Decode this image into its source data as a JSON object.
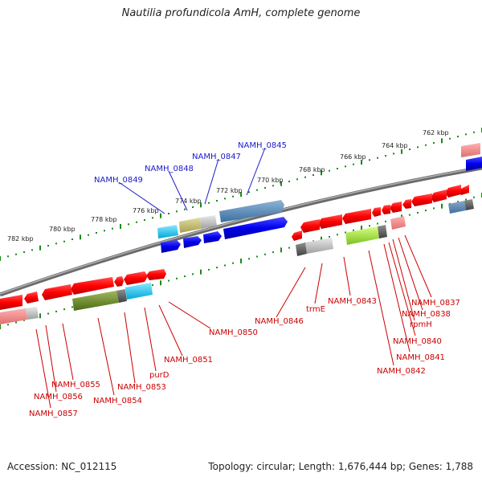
{
  "title": "Nautilia profundicola AmH, complete genome",
  "footer": {
    "accession": "Accession: NC_012115",
    "summary": "Topology: circular; Length: 1,676,444 bp; Genes: 1,788"
  },
  "colors": {
    "backbone": "#808080",
    "tick": "#1a8a1a",
    "forward_label": "#1a1acc",
    "reverse_label": "#cc0000",
    "gene_red": "#ff0000",
    "gene_blue": "#0000ee"
  },
  "tick_labels": [
    "762 kbp",
    "764 kbp",
    "766 kbp",
    "768 kbp",
    "770 kbp",
    "772 kbp",
    "774 kbp",
    "776 kbp",
    "778 kbp",
    "780 kbp",
    "782 kbp"
  ],
  "forward_genes": [
    "NAMH_0845",
    "NAMH_0847",
    "NAMH_0848",
    "NAMH_0849"
  ],
  "reverse_genes": [
    "NAMH_0837",
    "NAMH_0838",
    "rpmH",
    "NAMH_0840",
    "NAMH_0841",
    "NAMH_0842",
    "NAMH_0843",
    "trmE",
    "NAMH_0846",
    "NAMH_0850",
    "NAMH_0851",
    "purD",
    "NAMH_0853",
    "NAMH_0854",
    "NAMH_0855",
    "NAMH_0856",
    "NAMH_0857"
  ]
}
